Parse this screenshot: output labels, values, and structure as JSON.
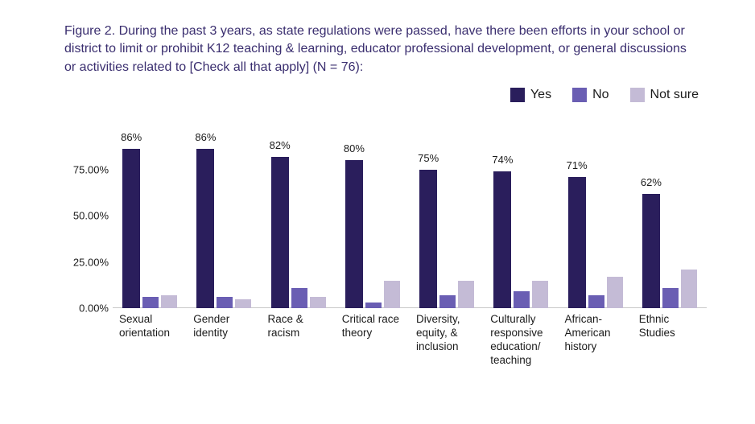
{
  "title": "Figure 2. During the past 3 years, as state regulations were passed, have there been efforts in your school or district to limit or prohibit K12 teaching & learning, educator professional development, or general discussions or activities related to [Check all that apply] (N = 76):",
  "chart": {
    "type": "bar-grouped",
    "background_color": "#ffffff",
    "title_color": "#3a2e6f",
    "title_fontsize": 16,
    "label_color": "#1b1b1b",
    "label_fontsize": 13,
    "xlabel_fontsize": 13.5,
    "axis_color": "#c9c9c9",
    "ylim": [
      0,
      100
    ],
    "ytick_step": 25,
    "yticks": [
      {
        "v": 0,
        "label": "0.00%"
      },
      {
        "v": 25,
        "label": "25.00%"
      },
      {
        "v": 50,
        "label": "50.00%"
      },
      {
        "v": 75,
        "label": "75.00%"
      }
    ],
    "bar_width_primary": 22,
    "bar_width_secondary": 20,
    "group_gap": 3,
    "series": [
      {
        "key": "yes",
        "label": "Yes",
        "color": "#2a1e5c"
      },
      {
        "key": "no",
        "label": "No",
        "color": "#6a5eb3"
      },
      {
        "key": "not_sure",
        "label": "Not sure",
        "color": "#c4bbd6"
      }
    ],
    "categories": [
      {
        "label": "Sexual orientation",
        "yes": 86,
        "no": 6,
        "not_sure": 7,
        "value_label": "86%"
      },
      {
        "label": "Gender identity",
        "yes": 86,
        "no": 6,
        "not_sure": 5,
        "value_label": "86%"
      },
      {
        "label": "Race & racism",
        "yes": 82,
        "no": 11,
        "not_sure": 6,
        "value_label": "82%"
      },
      {
        "label": "Critical race theory",
        "yes": 80,
        "no": 3,
        "not_sure": 15,
        "value_label": "80%"
      },
      {
        "label": "Diversity, equity, & inclusion",
        "yes": 75,
        "no": 7,
        "not_sure": 15,
        "value_label": "75%"
      },
      {
        "label": "Culturally responsive education/ teaching",
        "yes": 74,
        "no": 9,
        "not_sure": 15,
        "value_label": "74%"
      },
      {
        "label": "African-American history",
        "yes": 71,
        "no": 7,
        "not_sure": 17,
        "value_label": "71%"
      },
      {
        "label": "Ethnic Studies",
        "yes": 62,
        "no": 11,
        "not_sure": 21,
        "value_label": "62%"
      }
    ]
  }
}
